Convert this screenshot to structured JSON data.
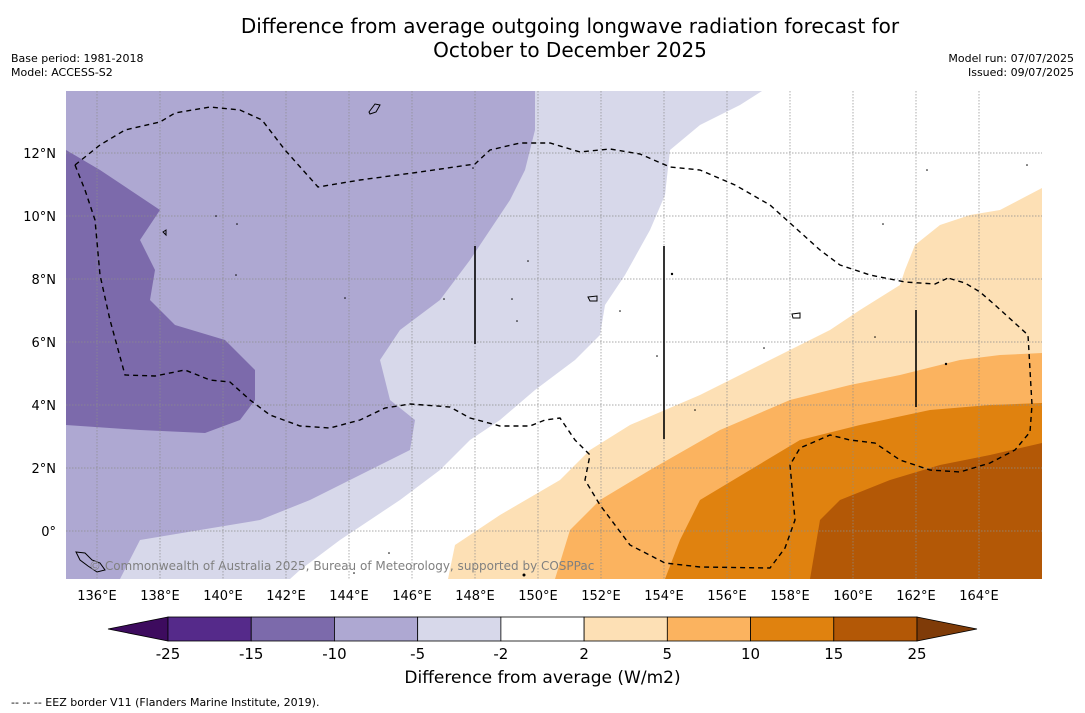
{
  "title": {
    "line1": "Difference from average outgoing longwave radiation forecast for",
    "line2": "October to December 2025"
  },
  "meta_left": {
    "base_period": "Base period: 1981-2018",
    "model": "Model: ACCESS-S2"
  },
  "meta_right": {
    "model_run": "Model run: 07/07/2025",
    "issued": "Issued: 09/07/2025"
  },
  "map": {
    "lon_labels": [
      "136°E",
      "138°E",
      "140°E",
      "142°E",
      "144°E",
      "146°E",
      "148°E",
      "150°E",
      "152°E",
      "154°E",
      "156°E",
      "158°E",
      "160°E",
      "162°E",
      "164°E"
    ],
    "lat_labels": [
      "12°N",
      "10°N",
      "8°N",
      "6°N",
      "4°N",
      "2°N",
      "0°"
    ],
    "watermark": "© Commonwealth of Australia 2025, Bureau of Meteorology, supported by COSPPac"
  },
  "colorbar": {
    "labels": [
      "-25",
      "-15",
      "-10",
      "-5",
      "-2",
      "2",
      "5",
      "10",
      "15",
      "25"
    ],
    "colors": [
      "#3d0b5e",
      "#552a8a",
      "#7c6aab",
      "#aea8d2",
      "#d7d8ea",
      "#ffffff",
      "#fde0b5",
      "#fbb35f",
      "#e0820f",
      "#b35806",
      "#7f3b08"
    ],
    "title": "Difference from average (W/m2)"
  },
  "footnote": "--  --  -- EEZ border V11 (Flanders Marine Institute, 2019)."
}
